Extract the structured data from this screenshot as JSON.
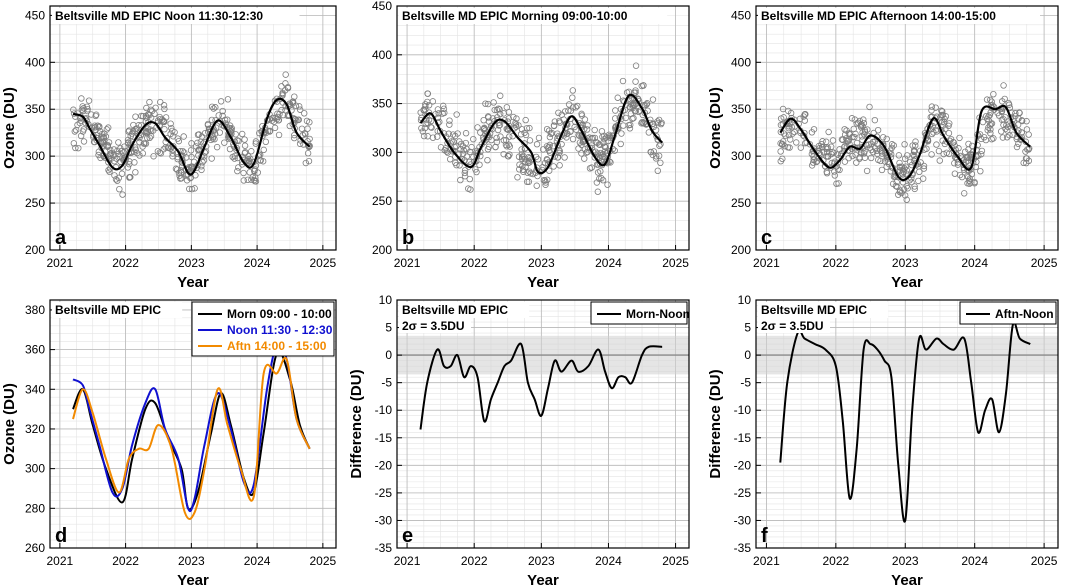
{
  "chart_data": [
    {
      "id": "a",
      "type": "scatter+line",
      "title": "Beltsville MD EPIC Noon 11:30-12:30",
      "panel_letter": "a",
      "xlabel": "Year",
      "ylabel": "Ozone (DU)",
      "xlim": [
        2020.85,
        2025.2
      ],
      "ylim": [
        200,
        460
      ],
      "xticks": [
        2021,
        2022,
        2023,
        2024,
        2025
      ],
      "yticks": [
        200,
        250,
        300,
        350,
        400,
        450
      ],
      "scatter_center": [
        [
          2021.2,
          325
        ],
        [
          2021.35,
          345
        ],
        [
          2021.5,
          330
        ],
        [
          2021.7,
          310
        ],
        [
          2021.85,
          295
        ],
        [
          2022.0,
          295
        ],
        [
          2022.15,
          315
        ],
        [
          2022.35,
          335
        ],
        [
          2022.55,
          330
        ],
        [
          2022.75,
          310
        ],
        [
          2022.95,
          285
        ],
        [
          2023.05,
          290
        ],
        [
          2023.2,
          315
        ],
        [
          2023.4,
          338
        ],
        [
          2023.6,
          325
        ],
        [
          2023.8,
          295
        ],
        [
          2024.0,
          295
        ],
        [
          2024.2,
          340
        ],
        [
          2024.4,
          360
        ],
        [
          2024.6,
          340
        ],
        [
          2024.8,
          312
        ]
      ],
      "scatter_spread": 30,
      "smooth": {
        "x": [
          2021.2,
          2021.35,
          2021.45,
          2021.6,
          2021.8,
          2021.95,
          2022.1,
          2022.3,
          2022.45,
          2022.6,
          2022.8,
          2022.95,
          2023.05,
          2023.2,
          2023.4,
          2023.6,
          2023.8,
          2023.95,
          2024.15,
          2024.3,
          2024.45,
          2024.6,
          2024.8
        ],
        "y": [
          345,
          342,
          330,
          312,
          288,
          290,
          312,
          333,
          335,
          320,
          305,
          282,
          285,
          310,
          338,
          320,
          293,
          292,
          340,
          360,
          355,
          325,
          310
        ]
      }
    },
    {
      "id": "b",
      "type": "scatter+line",
      "title": "Beltsville MD EPIC Morning 09:00-10:00",
      "panel_letter": "b",
      "xlabel": "Year",
      "ylabel": "",
      "xlim": [
        2020.85,
        2025.2
      ],
      "ylim": [
        200,
        450
      ],
      "xticks": [
        2021,
        2022,
        2023,
        2024,
        2025
      ],
      "yticks": [
        200,
        250,
        300,
        350,
        400,
        450
      ],
      "scatter_center": [
        [
          2021.2,
          335
        ],
        [
          2021.35,
          340
        ],
        [
          2021.5,
          325
        ],
        [
          2021.7,
          305
        ],
        [
          2021.85,
          290
        ],
        [
          2022.0,
          290
        ],
        [
          2022.15,
          315
        ],
        [
          2022.35,
          330
        ],
        [
          2022.55,
          320
        ],
        [
          2022.75,
          305
        ],
        [
          2022.95,
          280
        ],
        [
          2023.05,
          285
        ],
        [
          2023.2,
          310
        ],
        [
          2023.4,
          335
        ],
        [
          2023.6,
          320
        ],
        [
          2023.8,
          295
        ],
        [
          2024.0,
          300
        ],
        [
          2024.2,
          340
        ],
        [
          2024.4,
          355
        ],
        [
          2024.6,
          330
        ],
        [
          2024.8,
          310
        ]
      ],
      "scatter_spread": 30,
      "smooth": {
        "x": [
          2021.2,
          2021.35,
          2021.5,
          2021.7,
          2021.95,
          2022.1,
          2022.3,
          2022.45,
          2022.65,
          2022.85,
          2022.95,
          2023.1,
          2023.3,
          2023.45,
          2023.6,
          2023.8,
          2023.95,
          2024.1,
          2024.3,
          2024.5,
          2024.65,
          2024.8
        ],
        "y": [
          330,
          340,
          322,
          300,
          285,
          305,
          330,
          332,
          315,
          300,
          280,
          285,
          318,
          337,
          322,
          295,
          288,
          318,
          358,
          345,
          322,
          310
        ]
      }
    },
    {
      "id": "c",
      "type": "scatter+line",
      "title": "Beltsville MD EPIC Afternoon 14:00-15:00",
      "panel_letter": "c",
      "xlabel": "Year",
      "ylabel": "Ozone (DU)",
      "xlim": [
        2020.85,
        2025.2
      ],
      "ylim": [
        200,
        460
      ],
      "xticks": [
        2021,
        2022,
        2023,
        2024,
        2025
      ],
      "yticks": [
        200,
        250,
        300,
        350,
        400,
        450
      ],
      "scatter_center": [
        [
          2021.2,
          320
        ],
        [
          2021.35,
          335
        ],
        [
          2021.5,
          325
        ],
        [
          2021.7,
          310
        ],
        [
          2021.85,
          295
        ],
        [
          2022.0,
          295
        ],
        [
          2022.15,
          310
        ],
        [
          2022.35,
          320
        ],
        [
          2022.55,
          318
        ],
        [
          2022.75,
          300
        ],
        [
          2022.95,
          275
        ],
        [
          2023.05,
          280
        ],
        [
          2023.2,
          300
        ],
        [
          2023.4,
          335
        ],
        [
          2023.6,
          320
        ],
        [
          2023.8,
          295
        ],
        [
          2024.0,
          290
        ],
        [
          2024.2,
          340
        ],
        [
          2024.4,
          350
        ],
        [
          2024.6,
          330
        ],
        [
          2024.8,
          310
        ]
      ],
      "scatter_spread": 30,
      "smooth": {
        "x": [
          2021.2,
          2021.35,
          2021.5,
          2021.7,
          2021.9,
          2022.05,
          2022.2,
          2022.35,
          2022.5,
          2022.7,
          2022.9,
          2023.05,
          2023.2,
          2023.4,
          2023.55,
          2023.75,
          2023.95,
          2024.1,
          2024.3,
          2024.45,
          2024.6,
          2024.8
        ],
        "y": [
          325,
          340,
          328,
          305,
          288,
          295,
          310,
          308,
          322,
          310,
          278,
          278,
          300,
          340,
          322,
          300,
          288,
          348,
          350,
          352,
          325,
          310
        ]
      }
    },
    {
      "id": "d",
      "type": "line",
      "title": "Beltsville MD EPIC",
      "panel_letter": "d",
      "xlabel": "Year",
      "ylabel": "Ozone (DU)",
      "xlim": [
        2020.85,
        2025.2
      ],
      "ylim": [
        260,
        385
      ],
      "xticks": [
        2021,
        2022,
        2023,
        2024,
        2025
      ],
      "yticks": [
        260,
        280,
        300,
        320,
        340,
        360,
        380
      ],
      "legend_location": "top-right",
      "series": [
        {
          "name": "Morn 09:00 - 10:00",
          "color": "#000000",
          "x": [
            2021.2,
            2021.35,
            2021.5,
            2021.7,
            2021.95,
            2022.1,
            2022.3,
            2022.45,
            2022.65,
            2022.85,
            2022.95,
            2023.1,
            2023.3,
            2023.45,
            2023.6,
            2023.8,
            2023.95,
            2024.1,
            2024.3,
            2024.5,
            2024.65,
            2024.8
          ],
          "y": [
            330,
            340,
            322,
            300,
            283,
            305,
            330,
            333,
            315,
            300,
            280,
            288,
            318,
            338,
            322,
            295,
            288,
            318,
            358,
            345,
            322,
            310
          ]
        },
        {
          "name": "Noon 11:30 - 12:30",
          "color": "#1010d0",
          "x": [
            2021.2,
            2021.35,
            2021.45,
            2021.6,
            2021.8,
            2021.95,
            2022.1,
            2022.3,
            2022.45,
            2022.6,
            2022.8,
            2022.95,
            2023.05,
            2023.2,
            2023.4,
            2023.6,
            2023.8,
            2023.95,
            2024.15,
            2024.3,
            2024.45,
            2024.6,
            2024.8
          ],
          "y": [
            345,
            342,
            330,
            312,
            288,
            290,
            312,
            333,
            340,
            320,
            305,
            280,
            285,
            312,
            338,
            320,
            293,
            292,
            340,
            362,
            355,
            325,
            310
          ]
        },
        {
          "name": "Aftn 14:00 - 15:00",
          "color": "#f28a00",
          "x": [
            2021.2,
            2021.35,
            2021.5,
            2021.7,
            2021.9,
            2022.05,
            2022.2,
            2022.35,
            2022.5,
            2022.7,
            2022.9,
            2023.05,
            2023.2,
            2023.4,
            2023.55,
            2023.75,
            2023.95,
            2024.1,
            2024.3,
            2024.45,
            2024.6,
            2024.8
          ],
          "y": [
            325,
            340,
            328,
            305,
            288,
            305,
            310,
            310,
            322,
            310,
            278,
            278,
            300,
            340,
            322,
            300,
            286,
            348,
            348,
            355,
            325,
            310
          ]
        }
      ]
    },
    {
      "id": "e",
      "type": "line",
      "title": "Beltsville MD EPIC",
      "panel_letter": "e",
      "sigma_label": "2σ = 3.5DU",
      "sigma_value": 3.5,
      "xlabel": "Year",
      "ylabel": "Difference (DU)",
      "xlim": [
        2020.85,
        2025.2
      ],
      "ylim": [
        -35,
        10
      ],
      "xticks": [
        2021,
        2022,
        2023,
        2024,
        2025
      ],
      "yticks": [
        -35,
        -30,
        -25,
        -20,
        -15,
        -10,
        -5,
        0,
        5,
        10
      ],
      "legend_location": "top-right",
      "series": [
        {
          "name": "Morn-Noon",
          "color": "#000000",
          "x": [
            2021.2,
            2021.3,
            2021.45,
            2021.55,
            2021.65,
            2021.75,
            2021.85,
            2021.95,
            2022.05,
            2022.15,
            2022.25,
            2022.35,
            2022.45,
            2022.55,
            2022.7,
            2022.8,
            2022.9,
            2023.0,
            2023.1,
            2023.2,
            2023.3,
            2023.45,
            2023.55,
            2023.7,
            2023.85,
            2023.95,
            2024.05,
            2024.15,
            2024.25,
            2024.35,
            2024.5,
            2024.6,
            2024.8
          ],
          "y": [
            -13.5,
            -5,
            1,
            -2,
            -2,
            0,
            -4,
            -2,
            -4,
            -12,
            -8,
            -5,
            -2,
            -1,
            2,
            -5,
            -8,
            -11,
            -6,
            -1,
            -3,
            -1,
            -3,
            -2,
            1,
            -3,
            -6,
            -4,
            -4,
            -5,
            0,
            1.5,
            1.5
          ]
        }
      ]
    },
    {
      "id": "f",
      "type": "line",
      "title": "Beltsville MD EPIC",
      "panel_letter": "f",
      "sigma_label": "2σ = 3.5DU",
      "sigma_value": 3.5,
      "xlabel": "Year",
      "ylabel": "Difference (DU)",
      "xlim": [
        2020.85,
        2025.2
      ],
      "ylim": [
        -35,
        10
      ],
      "xticks": [
        2021,
        2022,
        2023,
        2024,
        2025
      ],
      "yticks": [
        -35,
        -30,
        -25,
        -20,
        -15,
        -10,
        -5,
        0,
        5,
        10
      ],
      "legend_location": "top-right",
      "series": [
        {
          "name": "Aftn-Noon",
          "color": "#000000",
          "x": [
            2021.2,
            2021.3,
            2021.45,
            2021.55,
            2021.7,
            2021.85,
            2022.0,
            2022.1,
            2022.2,
            2022.3,
            2022.4,
            2022.5,
            2022.6,
            2022.7,
            2022.8,
            2022.9,
            2023.0,
            2023.1,
            2023.2,
            2023.3,
            2023.45,
            2023.55,
            2023.7,
            2023.85,
            2023.95,
            2024.05,
            2024.15,
            2024.25,
            2024.35,
            2024.45,
            2024.55,
            2024.65,
            2024.8
          ],
          "y": [
            -19.5,
            -5,
            4,
            3,
            2,
            1,
            -2,
            -12,
            -26,
            -17,
            1,
            2,
            1,
            -1,
            -4,
            -20,
            -30,
            -10,
            3,
            1,
            3,
            2,
            1,
            3,
            -5,
            -14,
            -10,
            -8,
            -14,
            -7,
            5.5,
            3,
            2
          ]
        }
      ]
    }
  ]
}
